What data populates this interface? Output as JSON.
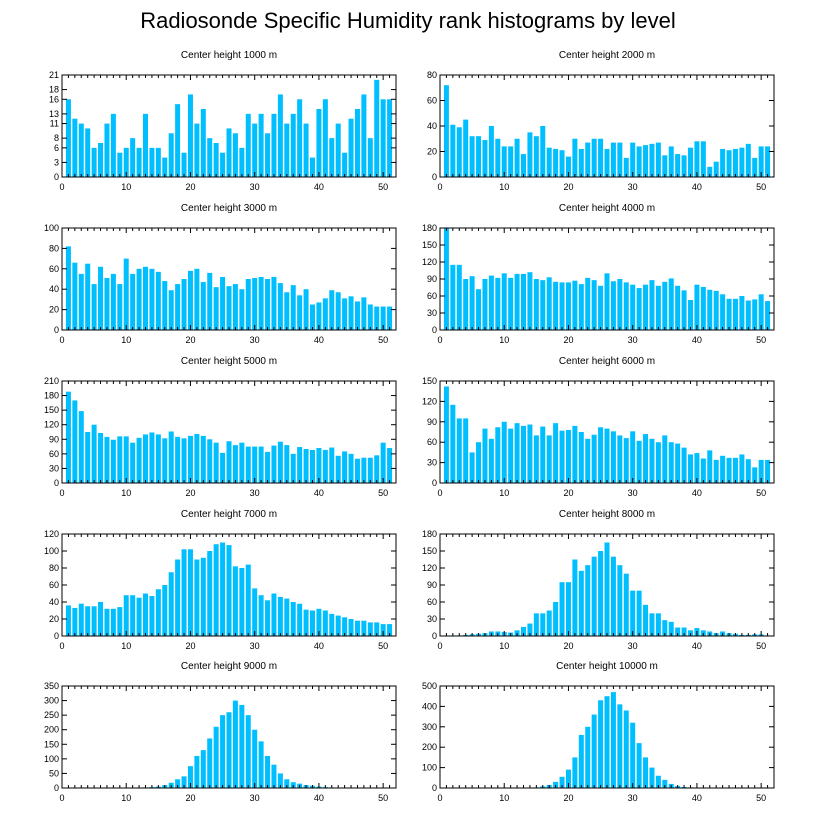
{
  "title": "Radiosonde Specific Humidity rank histograms by level",
  "colors": {
    "bar": "#00bfff",
    "axis": "#000000"
  },
  "chart_data": [
    {
      "type": "bar",
      "title": "Center height 1000 m",
      "xlim": [
        0,
        52
      ],
      "ylim": [
        0,
        21
      ],
      "xticks": [
        0,
        10,
        20,
        30,
        40,
        50
      ],
      "yticks": [
        0,
        3,
        6,
        8,
        11,
        13,
        16,
        18,
        21
      ],
      "values": [
        16,
        12,
        11,
        10,
        6,
        7,
        11,
        13,
        5,
        6,
        8,
        6,
        13,
        6,
        6,
        4,
        9,
        15,
        5,
        17,
        11,
        14,
        8,
        7,
        5,
        10,
        9,
        6,
        13,
        11,
        13,
        9,
        13,
        17,
        11,
        13,
        16,
        11,
        4,
        14,
        16,
        8,
        11,
        5,
        12,
        14,
        17,
        8,
        20,
        16,
        16
      ]
    },
    {
      "type": "bar",
      "title": "Center height 2000 m",
      "xlim": [
        0,
        52
      ],
      "ylim": [
        0,
        80
      ],
      "xticks": [
        0,
        10,
        20,
        30,
        40,
        50
      ],
      "yticks": [
        0,
        20,
        40,
        60,
        80
      ],
      "values": [
        72,
        41,
        39,
        45,
        32,
        32,
        29,
        40,
        30,
        24,
        24,
        30,
        18,
        35,
        32,
        40,
        23,
        22,
        21,
        16,
        30,
        22,
        27,
        30,
        30,
        22,
        27,
        27,
        15,
        27,
        24,
        25,
        26,
        27,
        17,
        24,
        18,
        17,
        23,
        28,
        28,
        8,
        12,
        22,
        21,
        22,
        23,
        26,
        15,
        24,
        24
      ]
    },
    {
      "type": "bar",
      "title": "Center height 3000 m",
      "xlim": [
        0,
        52
      ],
      "ylim": [
        0,
        100
      ],
      "xticks": [
        0,
        10,
        20,
        30,
        40,
        50
      ],
      "yticks": [
        0,
        20,
        40,
        60,
        80,
        100
      ],
      "values": [
        82,
        66,
        55,
        65,
        45,
        62,
        51,
        55,
        45,
        70,
        55,
        60,
        62,
        60,
        57,
        48,
        39,
        45,
        50,
        58,
        60,
        47,
        56,
        42,
        52,
        43,
        45,
        40,
        50,
        51,
        52,
        50,
        52,
        46,
        37,
        44,
        34,
        40,
        25,
        27,
        31,
        39,
        37,
        31,
        33,
        28,
        32,
        25,
        23,
        23,
        23
      ]
    },
    {
      "type": "bar",
      "title": "Center height 4000 m",
      "xlim": [
        0,
        52
      ],
      "ylim": [
        0,
        180
      ],
      "xticks": [
        0,
        10,
        20,
        30,
        40,
        50
      ],
      "yticks": [
        0,
        30,
        60,
        90,
        120,
        150,
        180
      ],
      "values": [
        180,
        115,
        115,
        90,
        95,
        72,
        90,
        96,
        92,
        100,
        92,
        99,
        99,
        102,
        90,
        88,
        93,
        85,
        84,
        84,
        87,
        81,
        92,
        88,
        78,
        100,
        86,
        90,
        84,
        80,
        74,
        80,
        88,
        78,
        85,
        91,
        78,
        70,
        53,
        80,
        76,
        71,
        69,
        63,
        55,
        55,
        60,
        52,
        54,
        63,
        51
      ]
    },
    {
      "type": "bar",
      "title": "Center height 5000 m",
      "xlim": [
        0,
        52
      ],
      "ylim": [
        0,
        210
      ],
      "xticks": [
        0,
        10,
        20,
        30,
        40,
        50
      ],
      "yticks": [
        0,
        30,
        60,
        90,
        120,
        150,
        180,
        210
      ],
      "values": [
        188,
        170,
        148,
        105,
        120,
        103,
        95,
        89,
        96,
        96,
        83,
        93,
        100,
        104,
        100,
        92,
        106,
        95,
        92,
        97,
        101,
        97,
        90,
        83,
        62,
        86,
        78,
        83,
        75,
        75,
        75,
        64,
        77,
        85,
        78,
        60,
        74,
        70,
        68,
        72,
        68,
        73,
        56,
        65,
        60,
        50,
        52,
        52,
        57,
        83,
        72
      ]
    },
    {
      "type": "bar",
      "title": "Center height 6000 m",
      "xlim": [
        0,
        52
      ],
      "ylim": [
        0,
        150
      ],
      "xticks": [
        0,
        10,
        20,
        30,
        40,
        50
      ],
      "yticks": [
        0,
        30,
        60,
        90,
        120,
        150
      ],
      "values": [
        142,
        115,
        95,
        95,
        45,
        60,
        80,
        65,
        82,
        90,
        80,
        88,
        84,
        86,
        70,
        83,
        70,
        88,
        77,
        78,
        84,
        75,
        65,
        71,
        82,
        80,
        76,
        70,
        66,
        76,
        62,
        72,
        65,
        60,
        70,
        60,
        58,
        52,
        42,
        44,
        36,
        48,
        34,
        40,
        37,
        37,
        42,
        35,
        23,
        34,
        34
      ]
    },
    {
      "type": "bar",
      "title": "Center height 7000 m",
      "xlim": [
        0,
        52
      ],
      "ylim": [
        0,
        120
      ],
      "xticks": [
        0,
        10,
        20,
        30,
        40,
        50
      ],
      "yticks": [
        0,
        20,
        40,
        60,
        80,
        100,
        120
      ],
      "values": [
        36,
        33,
        38,
        35,
        35,
        40,
        32,
        32,
        34,
        48,
        48,
        45,
        50,
        47,
        55,
        60,
        75,
        90,
        102,
        102,
        90,
        92,
        100,
        108,
        110,
        107,
        82,
        80,
        84,
        56,
        48,
        42,
        50,
        46,
        44,
        40,
        38,
        31,
        30,
        32,
        30,
        26,
        24,
        22,
        20,
        18,
        18,
        16,
        16,
        14,
        14
      ]
    },
    {
      "type": "bar",
      "title": "Center height 8000 m",
      "xlim": [
        0,
        52
      ],
      "ylim": [
        0,
        180
      ],
      "xticks": [
        0,
        10,
        20,
        30,
        40,
        50
      ],
      "yticks": [
        0,
        30,
        60,
        90,
        120,
        150,
        180
      ],
      "values": [
        1,
        1,
        1,
        2,
        3,
        4,
        5,
        8,
        8,
        7,
        6,
        10,
        16,
        22,
        40,
        40,
        45,
        60,
        95,
        95,
        135,
        115,
        125,
        140,
        150,
        165,
        140,
        125,
        110,
        80,
        80,
        55,
        40,
        40,
        28,
        25,
        15,
        15,
        10,
        14,
        10,
        8,
        5,
        8,
        5,
        4,
        2,
        2,
        3,
        3,
        1
      ]
    },
    {
      "type": "bar",
      "title": "Center height 9000 m",
      "xlim": [
        0,
        52
      ],
      "ylim": [
        0,
        350
      ],
      "xticks": [
        0,
        10,
        20,
        30,
        40,
        50
      ],
      "yticks": [
        0,
        50,
        100,
        150,
        200,
        250,
        300,
        350
      ],
      "values": [
        0,
        0,
        0,
        0,
        0,
        0,
        0,
        0,
        0,
        0,
        0,
        1,
        2,
        3,
        5,
        10,
        18,
        30,
        40,
        75,
        110,
        130,
        170,
        210,
        250,
        260,
        300,
        285,
        250,
        200,
        160,
        110,
        80,
        50,
        30,
        20,
        15,
        10,
        8,
        5,
        3,
        2,
        1,
        1,
        0,
        0,
        0,
        0,
        0,
        0,
        0
      ]
    },
    {
      "type": "bar",
      "title": "Center height 10000 m",
      "xlim": [
        0,
        52
      ],
      "ylim": [
        0,
        500
      ],
      "xticks": [
        0,
        10,
        20,
        30,
        40,
        50
      ],
      "yticks": [
        0,
        100,
        200,
        300,
        400,
        500
      ],
      "values": [
        0,
        0,
        0,
        0,
        0,
        0,
        0,
        0,
        0,
        0,
        0,
        0,
        1,
        2,
        3,
        8,
        15,
        30,
        55,
        90,
        150,
        260,
        300,
        360,
        430,
        450,
        470,
        410,
        380,
        320,
        220,
        150,
        100,
        60,
        40,
        20,
        10,
        5,
        3,
        2,
        1,
        0,
        0,
        0,
        0,
        0,
        0,
        0,
        0,
        0,
        0
      ]
    }
  ]
}
